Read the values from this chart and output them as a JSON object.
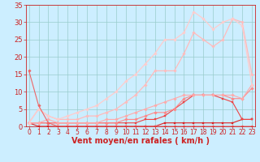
{
  "x": [
    0,
    1,
    2,
    3,
    4,
    5,
    6,
    7,
    8,
    9,
    10,
    11,
    12,
    13,
    14,
    15,
    16,
    17,
    18,
    19,
    20,
    21,
    22,
    23
  ],
  "series": [
    {
      "name": "line_dark_red_flat",
      "color": "#dd2222",
      "linewidth": 0.8,
      "marker": "s",
      "markersize": 1.8,
      "y": [
        1,
        0,
        0,
        0,
        0,
        0,
        0,
        0,
        0,
        0,
        0,
        0,
        0,
        0,
        1,
        1,
        1,
        1,
        1,
        1,
        1,
        1,
        2,
        2
      ]
    },
    {
      "name": "line_red_medium",
      "color": "#ee4444",
      "linewidth": 0.8,
      "marker": "s",
      "markersize": 1.8,
      "y": [
        1,
        1,
        1,
        1,
        1,
        1,
        1,
        1,
        1,
        1,
        1,
        1,
        2,
        2,
        3,
        5,
        7,
        9,
        9,
        9,
        8,
        7,
        2,
        2
      ]
    },
    {
      "name": "line_salmon1",
      "color": "#ff8888",
      "linewidth": 0.8,
      "marker": "D",
      "markersize": 1.8,
      "y": [
        1,
        1,
        1,
        1,
        1,
        1,
        1,
        1,
        1,
        1,
        2,
        2,
        3,
        4,
        4,
        5,
        8,
        9,
        9,
        9,
        9,
        8,
        8,
        11
      ]
    },
    {
      "name": "line_salmon2",
      "color": "#ffaaaa",
      "linewidth": 0.8,
      "marker": "D",
      "markersize": 1.8,
      "y": [
        1,
        1,
        2,
        1,
        1,
        1,
        1,
        1,
        2,
        2,
        3,
        4,
        5,
        6,
        7,
        8,
        9,
        9,
        9,
        9,
        9,
        9,
        8,
        12
      ]
    },
    {
      "name": "line_light1",
      "color": "#ffbbbb",
      "linewidth": 0.9,
      "marker": "D",
      "markersize": 1.8,
      "y": [
        1,
        5,
        3,
        2,
        2,
        2,
        3,
        3,
        4,
        5,
        7,
        9,
        12,
        16,
        16,
        16,
        21,
        27,
        25,
        23,
        25,
        31,
        30,
        15
      ]
    },
    {
      "name": "line_lightest",
      "color": "#ffcccc",
      "linewidth": 0.9,
      "marker": "D",
      "markersize": 1.8,
      "y": [
        1,
        5,
        3,
        2,
        3,
        4,
        5,
        6,
        8,
        10,
        13,
        15,
        18,
        21,
        25,
        25,
        27,
        33,
        31,
        28,
        30,
        31,
        29,
        12
      ]
    },
    {
      "name": "line_drop",
      "color": "#ee6666",
      "linewidth": 0.8,
      "marker": "D",
      "markersize": 1.8,
      "y": [
        16,
        6,
        1,
        0,
        0,
        0,
        0,
        0,
        0,
        0,
        0,
        0,
        0,
        0,
        0,
        0,
        0,
        0,
        0,
        0,
        0,
        0,
        0,
        0
      ]
    }
  ],
  "xlim": [
    -0.3,
    23.3
  ],
  "ylim": [
    0,
    35
  ],
  "xlabel": "Vent moyen/en rafales ( km/h )",
  "yticks": [
    0,
    5,
    10,
    15,
    20,
    25,
    30,
    35
  ],
  "xticks": [
    0,
    1,
    2,
    3,
    4,
    5,
    6,
    7,
    8,
    9,
    10,
    11,
    12,
    13,
    14,
    15,
    16,
    17,
    18,
    19,
    20,
    21,
    22,
    23
  ],
  "bg_color": "#cceeff",
  "grid_color": "#99cccc",
  "tick_color": "#cc2222",
  "xlabel_color": "#cc2222",
  "xlabel_fontsize": 7,
  "ytick_fontsize": 6,
  "xtick_fontsize": 5.5
}
